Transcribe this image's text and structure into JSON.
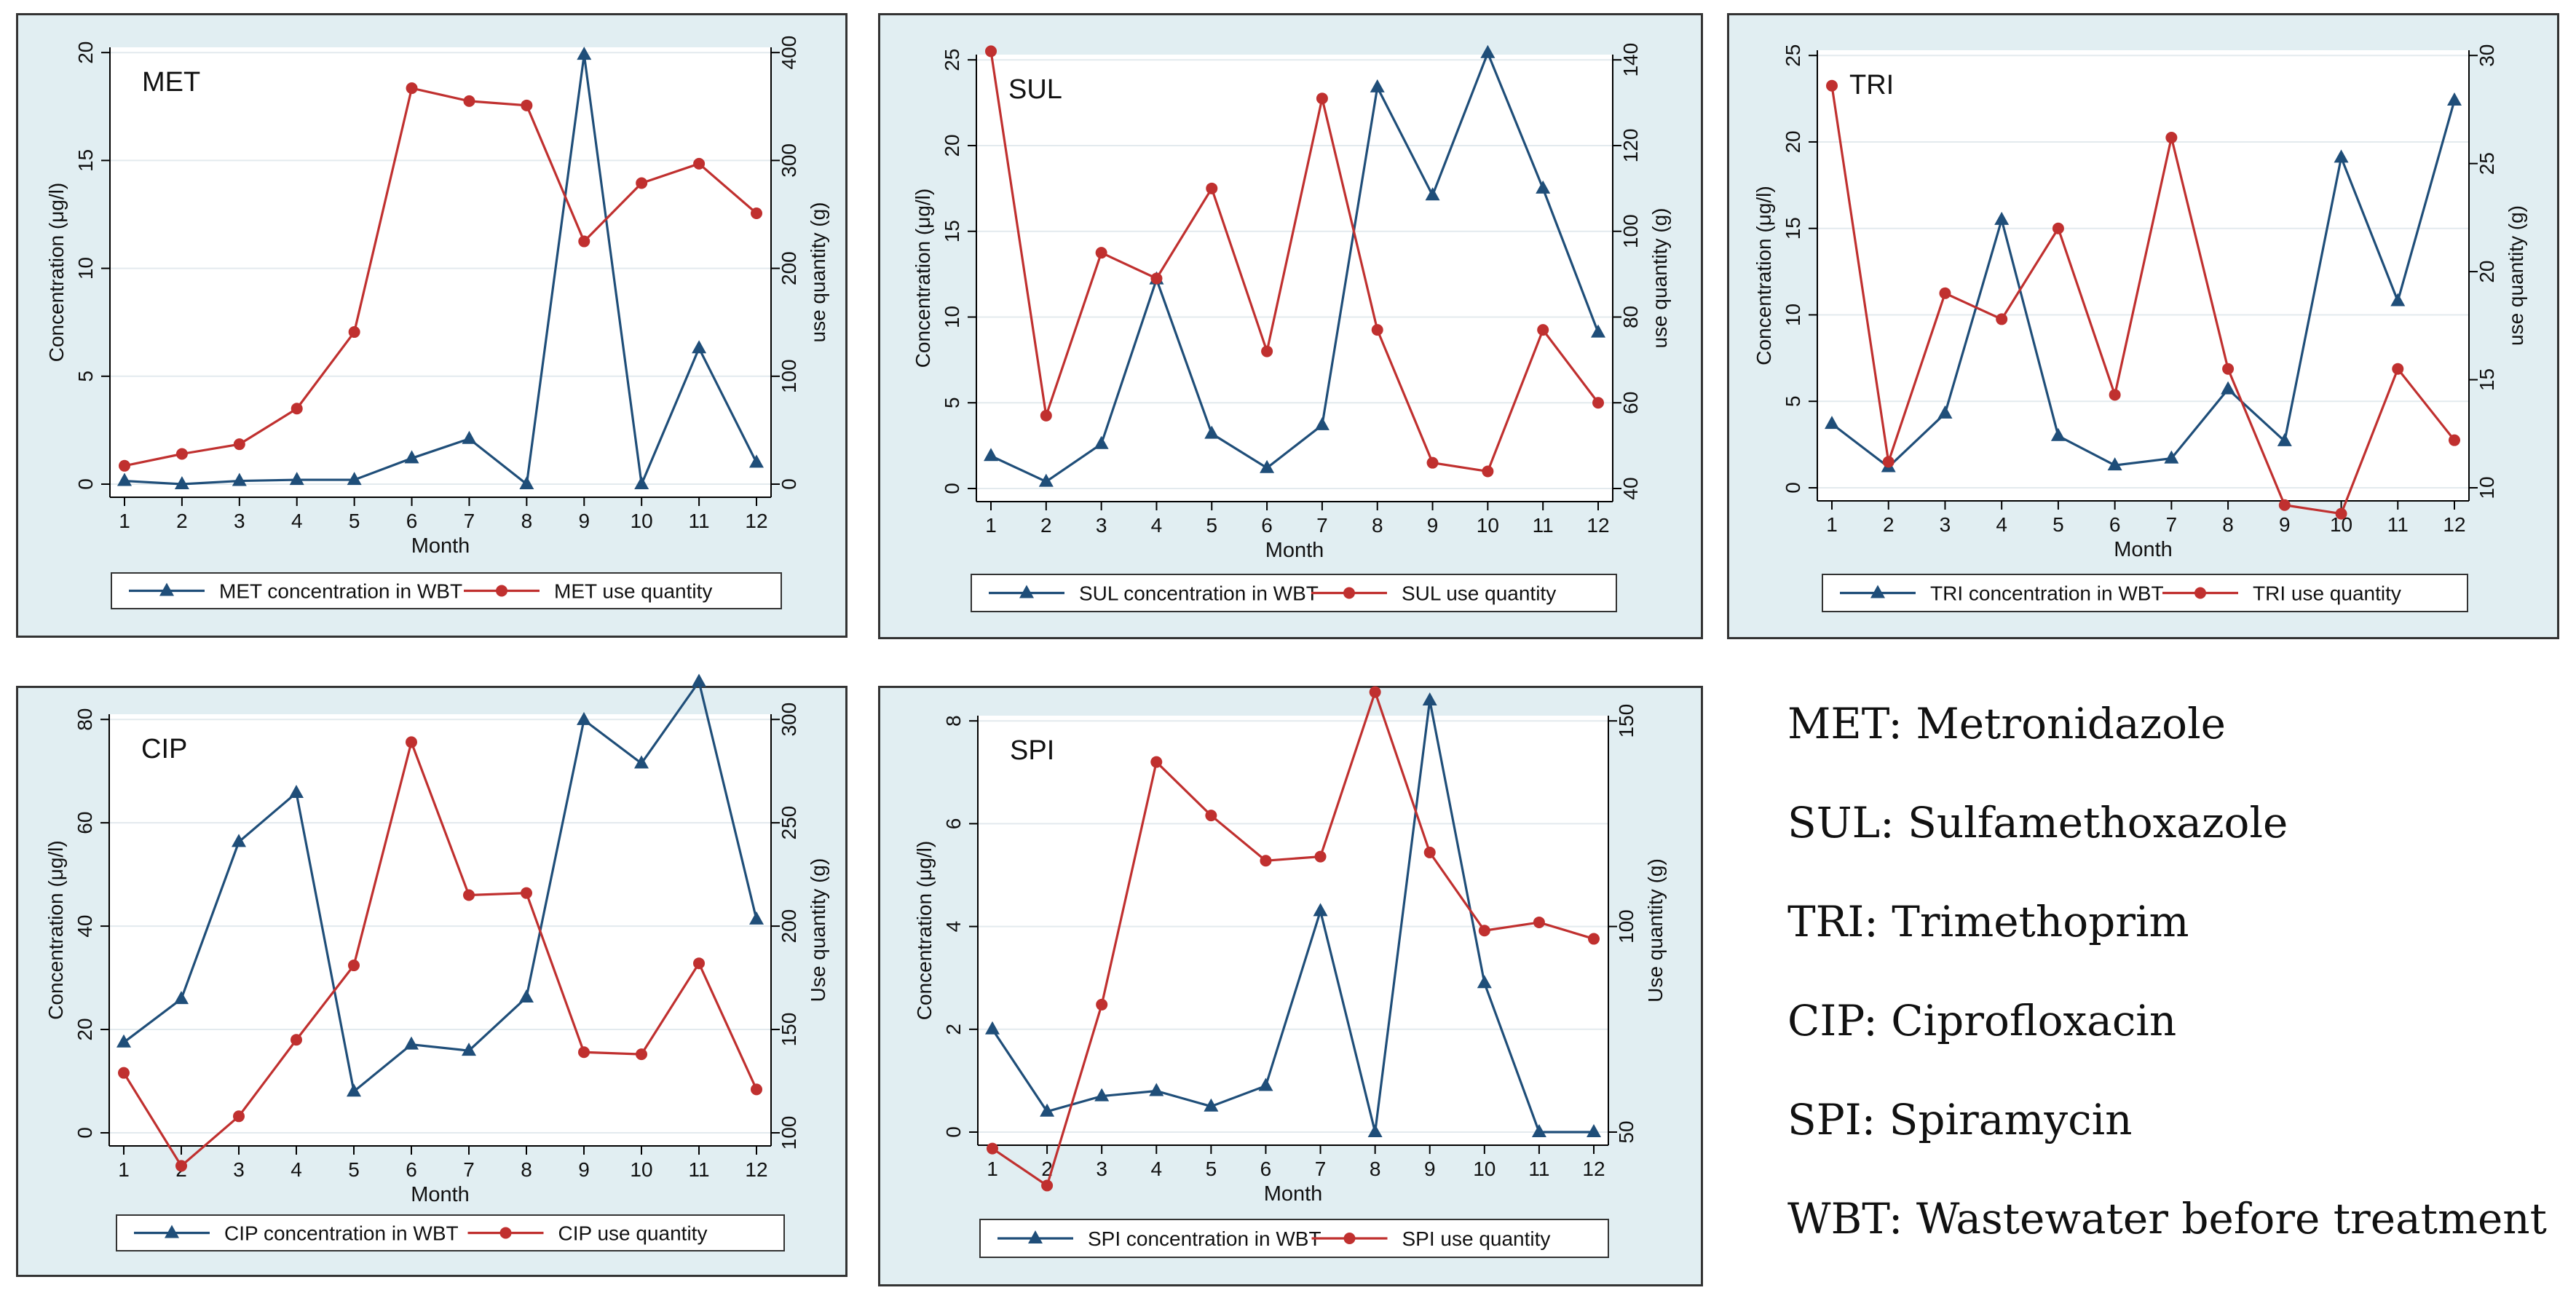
{
  "colors": {
    "concentration": "#1f4e79",
    "use": "#c0302f",
    "panel_bg": "#e1eef2",
    "plot_bg": "#ffffff",
    "grid": "#e3eaee"
  },
  "abbreviations": [
    "MET: Metronidazole",
    "SUL: Sulfamethoxazole",
    "TRI: Trimethoprim",
    "CIP: Ciprofloxacin",
    "SPI: Spiramycin",
    "WBT: Wastewater before treatment"
  ],
  "chart_data": [
    {
      "type": "line",
      "title": "MET",
      "x": [
        1,
        2,
        3,
        4,
        5,
        6,
        7,
        8,
        9,
        10,
        11,
        12
      ],
      "xlabel": "Month",
      "ylabel": "Concentration (μg/l)",
      "y2label": "use quantity (g)",
      "ylim": [
        0,
        20
      ],
      "yticks": [
        0,
        5,
        10,
        15,
        20
      ],
      "y2lim": [
        0,
        400
      ],
      "y2ticks": [
        0,
        100,
        200,
        300,
        400
      ],
      "grid": true,
      "legend": "bottom",
      "series": [
        {
          "name": "MET concentration in WBT",
          "axis": "left",
          "marker": "triangle",
          "values": [
            0.15,
            0.0,
            0.15,
            0.2,
            0.2,
            1.2,
            2.1,
            0.0,
            19.9,
            0.0,
            6.3,
            1.0
          ]
        },
        {
          "name": "MET use quantity",
          "axis": "right",
          "marker": "circle",
          "values": [
            17,
            28,
            37,
            70,
            141,
            367,
            355,
            351,
            225,
            279,
            297,
            251
          ]
        }
      ]
    },
    {
      "type": "line",
      "title": "SUL",
      "x": [
        1,
        2,
        3,
        4,
        5,
        6,
        7,
        8,
        9,
        10,
        11,
        12
      ],
      "xlabel": "Month",
      "ylabel": "Concentration (μg/l)",
      "y2label": "use quantity (g)",
      "ylim": [
        0,
        25
      ],
      "yticks": [
        0,
        5,
        10,
        15,
        20,
        25
      ],
      "y2lim": [
        40,
        140
      ],
      "y2ticks": [
        40,
        60,
        80,
        100,
        120,
        140
      ],
      "grid": true,
      "legend": "bottom",
      "series": [
        {
          "name": "SUL concentration in WBT",
          "axis": "left",
          "marker": "triangle",
          "values": [
            1.9,
            0.4,
            2.6,
            12.2,
            3.2,
            1.2,
            3.7,
            23.4,
            17.1,
            25.4,
            17.5,
            9.1
          ]
        },
        {
          "name": "SUL use quantity",
          "axis": "right",
          "marker": "circle",
          "values": [
            142,
            57,
            95,
            89,
            110,
            72,
            131,
            77,
            46,
            44,
            77,
            60
          ]
        }
      ]
    },
    {
      "type": "line",
      "title": "TRI",
      "x": [
        1,
        2,
        3,
        4,
        5,
        6,
        7,
        8,
        9,
        10,
        11,
        12
      ],
      "xlabel": "Month",
      "ylabel": "Concentration (μg/l)",
      "y2label": "use quantity (g)",
      "ylim": [
        0,
        25
      ],
      "yticks": [
        0,
        5,
        10,
        15,
        20,
        25
      ],
      "y2lim": [
        10,
        30
      ],
      "y2ticks": [
        10,
        15,
        20,
        25,
        30
      ],
      "grid": true,
      "legend": "bottom",
      "series": [
        {
          "name": "TRI concentration in WBT",
          "axis": "left",
          "marker": "triangle",
          "values": [
            3.7,
            1.2,
            4.3,
            15.5,
            3.0,
            1.3,
            1.7,
            5.7,
            2.7,
            19.1,
            10.8,
            22.4
          ]
        },
        {
          "name": "TRI use quantity",
          "axis": "right",
          "marker": "circle",
          "values": [
            28.6,
            11.2,
            19.0,
            17.8,
            22.0,
            14.3,
            26.2,
            15.5,
            9.2,
            8.8,
            15.5,
            12.2
          ]
        }
      ]
    },
    {
      "type": "line",
      "title": "CIP",
      "x": [
        1,
        2,
        3,
        4,
        5,
        6,
        7,
        8,
        9,
        10,
        11,
        12
      ],
      "xlabel": "Month",
      "ylabel": "Concentration (μg/l)",
      "y2label": "Use quantity (g)",
      "ylim": [
        0,
        80
      ],
      "yticks": [
        0,
        20,
        40,
        60,
        80
      ],
      "y2lim": [
        100,
        300
      ],
      "y2ticks": [
        100,
        150,
        200,
        250,
        300
      ],
      "grid": true,
      "legend": "bottom",
      "series": [
        {
          "name": "CIP concentration in WBT",
          "axis": "left",
          "marker": "triangle",
          "values": [
            17.5,
            25.9,
            56.3,
            65.8,
            8.0,
            17.1,
            15.9,
            26.2,
            79.9,
            71.5,
            87.3,
            41.3
          ]
        },
        {
          "name": "CIP use quantity",
          "axis": "right",
          "marker": "circle",
          "values": [
            129,
            84,
            108,
            145,
            181,
            289,
            215,
            216,
            139,
            138,
            182,
            121
          ]
        }
      ]
    },
    {
      "type": "line",
      "title": "SPI",
      "x": [
        1,
        2,
        3,
        4,
        5,
        6,
        7,
        8,
        9,
        10,
        11,
        12
      ],
      "xlabel": "Month",
      "ylabel": "Concentration (μg/l)",
      "y2label": "Use quantity (g)",
      "ylim": [
        0,
        8
      ],
      "yticks": [
        0,
        2,
        4,
        6,
        8
      ],
      "y2lim": [
        50,
        150
      ],
      "y2ticks": [
        50,
        100,
        150
      ],
      "grid": true,
      "legend": "bottom",
      "series": [
        {
          "name": "SPI concentration in WBT",
          "axis": "left",
          "marker": "triangle",
          "values": [
            2.0,
            0.4,
            0.7,
            0.8,
            0.5,
            0.9,
            4.3,
            0.0,
            8.4,
            2.9,
            0.0,
            0.0
          ]
        },
        {
          "name": "SPI use quantity",
          "axis": "right",
          "marker": "circle",
          "values": [
            46,
            37,
            81,
            140,
            127,
            116,
            117,
            157,
            118,
            99,
            101,
            97
          ]
        }
      ]
    }
  ]
}
